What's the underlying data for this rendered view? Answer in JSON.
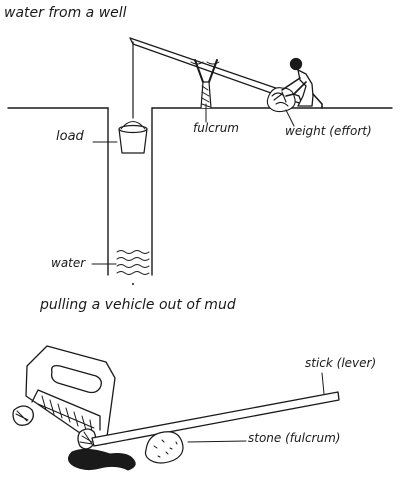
{
  "diagram1": {
    "title": "water from a well",
    "labels": {
      "load": "load",
      "fulcrum": "fulcrum",
      "weight": "weight (effort)",
      "water": "water"
    }
  },
  "diagram2": {
    "title": "pulling a vehicle out of mud",
    "labels": {
      "stick": "stick (lever)",
      "stone": "stone (fulcrum)"
    }
  }
}
